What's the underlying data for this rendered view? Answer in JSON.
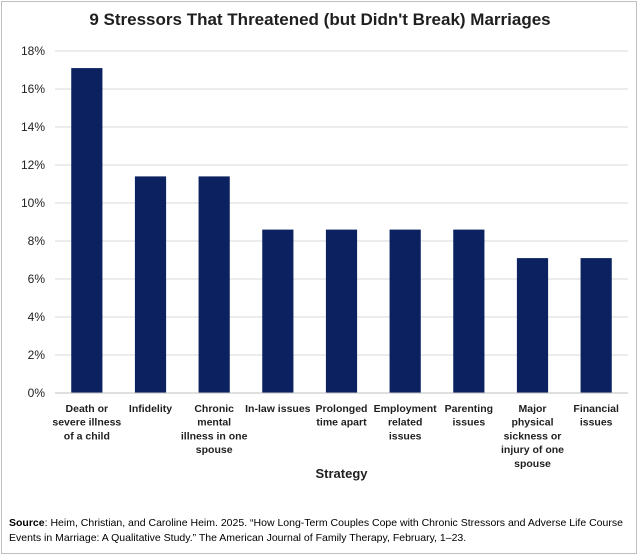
{
  "chart_data": {
    "type": "bar",
    "title": "9 Stressors That Threatened (but Didn't Break) Marriages",
    "xlabel": "Strategy",
    "ylabel": "",
    "ylim": [
      0,
      18
    ],
    "yticks": [
      "0%",
      "2%",
      "4%",
      "6%",
      "8%",
      "10%",
      "12%",
      "14%",
      "16%",
      "18%"
    ],
    "categories": [
      "Death or severe illness of a child",
      "Infidelity",
      "Chronic mental illness in one spouse",
      "In-law issues",
      "Prolonged time apart",
      "Employment related issues",
      "Parenting issues",
      "Major physical sickness or injury of one spouse",
      "Financial issues"
    ],
    "category_lines": [
      [
        "Death or",
        "severe illness",
        "of a child"
      ],
      [
        "Infidelity"
      ],
      [
        "Chronic",
        "mental",
        "illness in one",
        "spouse"
      ],
      [
        "In-law issues"
      ],
      [
        "Prolonged",
        "time apart"
      ],
      [
        "Employment",
        "related",
        "issues"
      ],
      [
        "Parenting",
        "issues"
      ],
      [
        "Major",
        "physical",
        "sickness or",
        "injury of one",
        "spouse"
      ],
      [
        "Financial",
        "issues"
      ]
    ],
    "values": [
      17.1,
      11.4,
      11.4,
      8.6,
      8.6,
      8.6,
      8.6,
      7.1,
      7.1
    ],
    "bar_color": "#0c2260",
    "grid": true,
    "legend": "none"
  },
  "source": {
    "label": "Source",
    "text": ": Heim, Christian, and Caroline Heim. 2025. “How Long-Term Couples Cope with Chronic Stressors and Adverse Life Course Events in Marriage: A Qualitative Study.” The American Journal of Family Therapy, February, 1–23."
  }
}
